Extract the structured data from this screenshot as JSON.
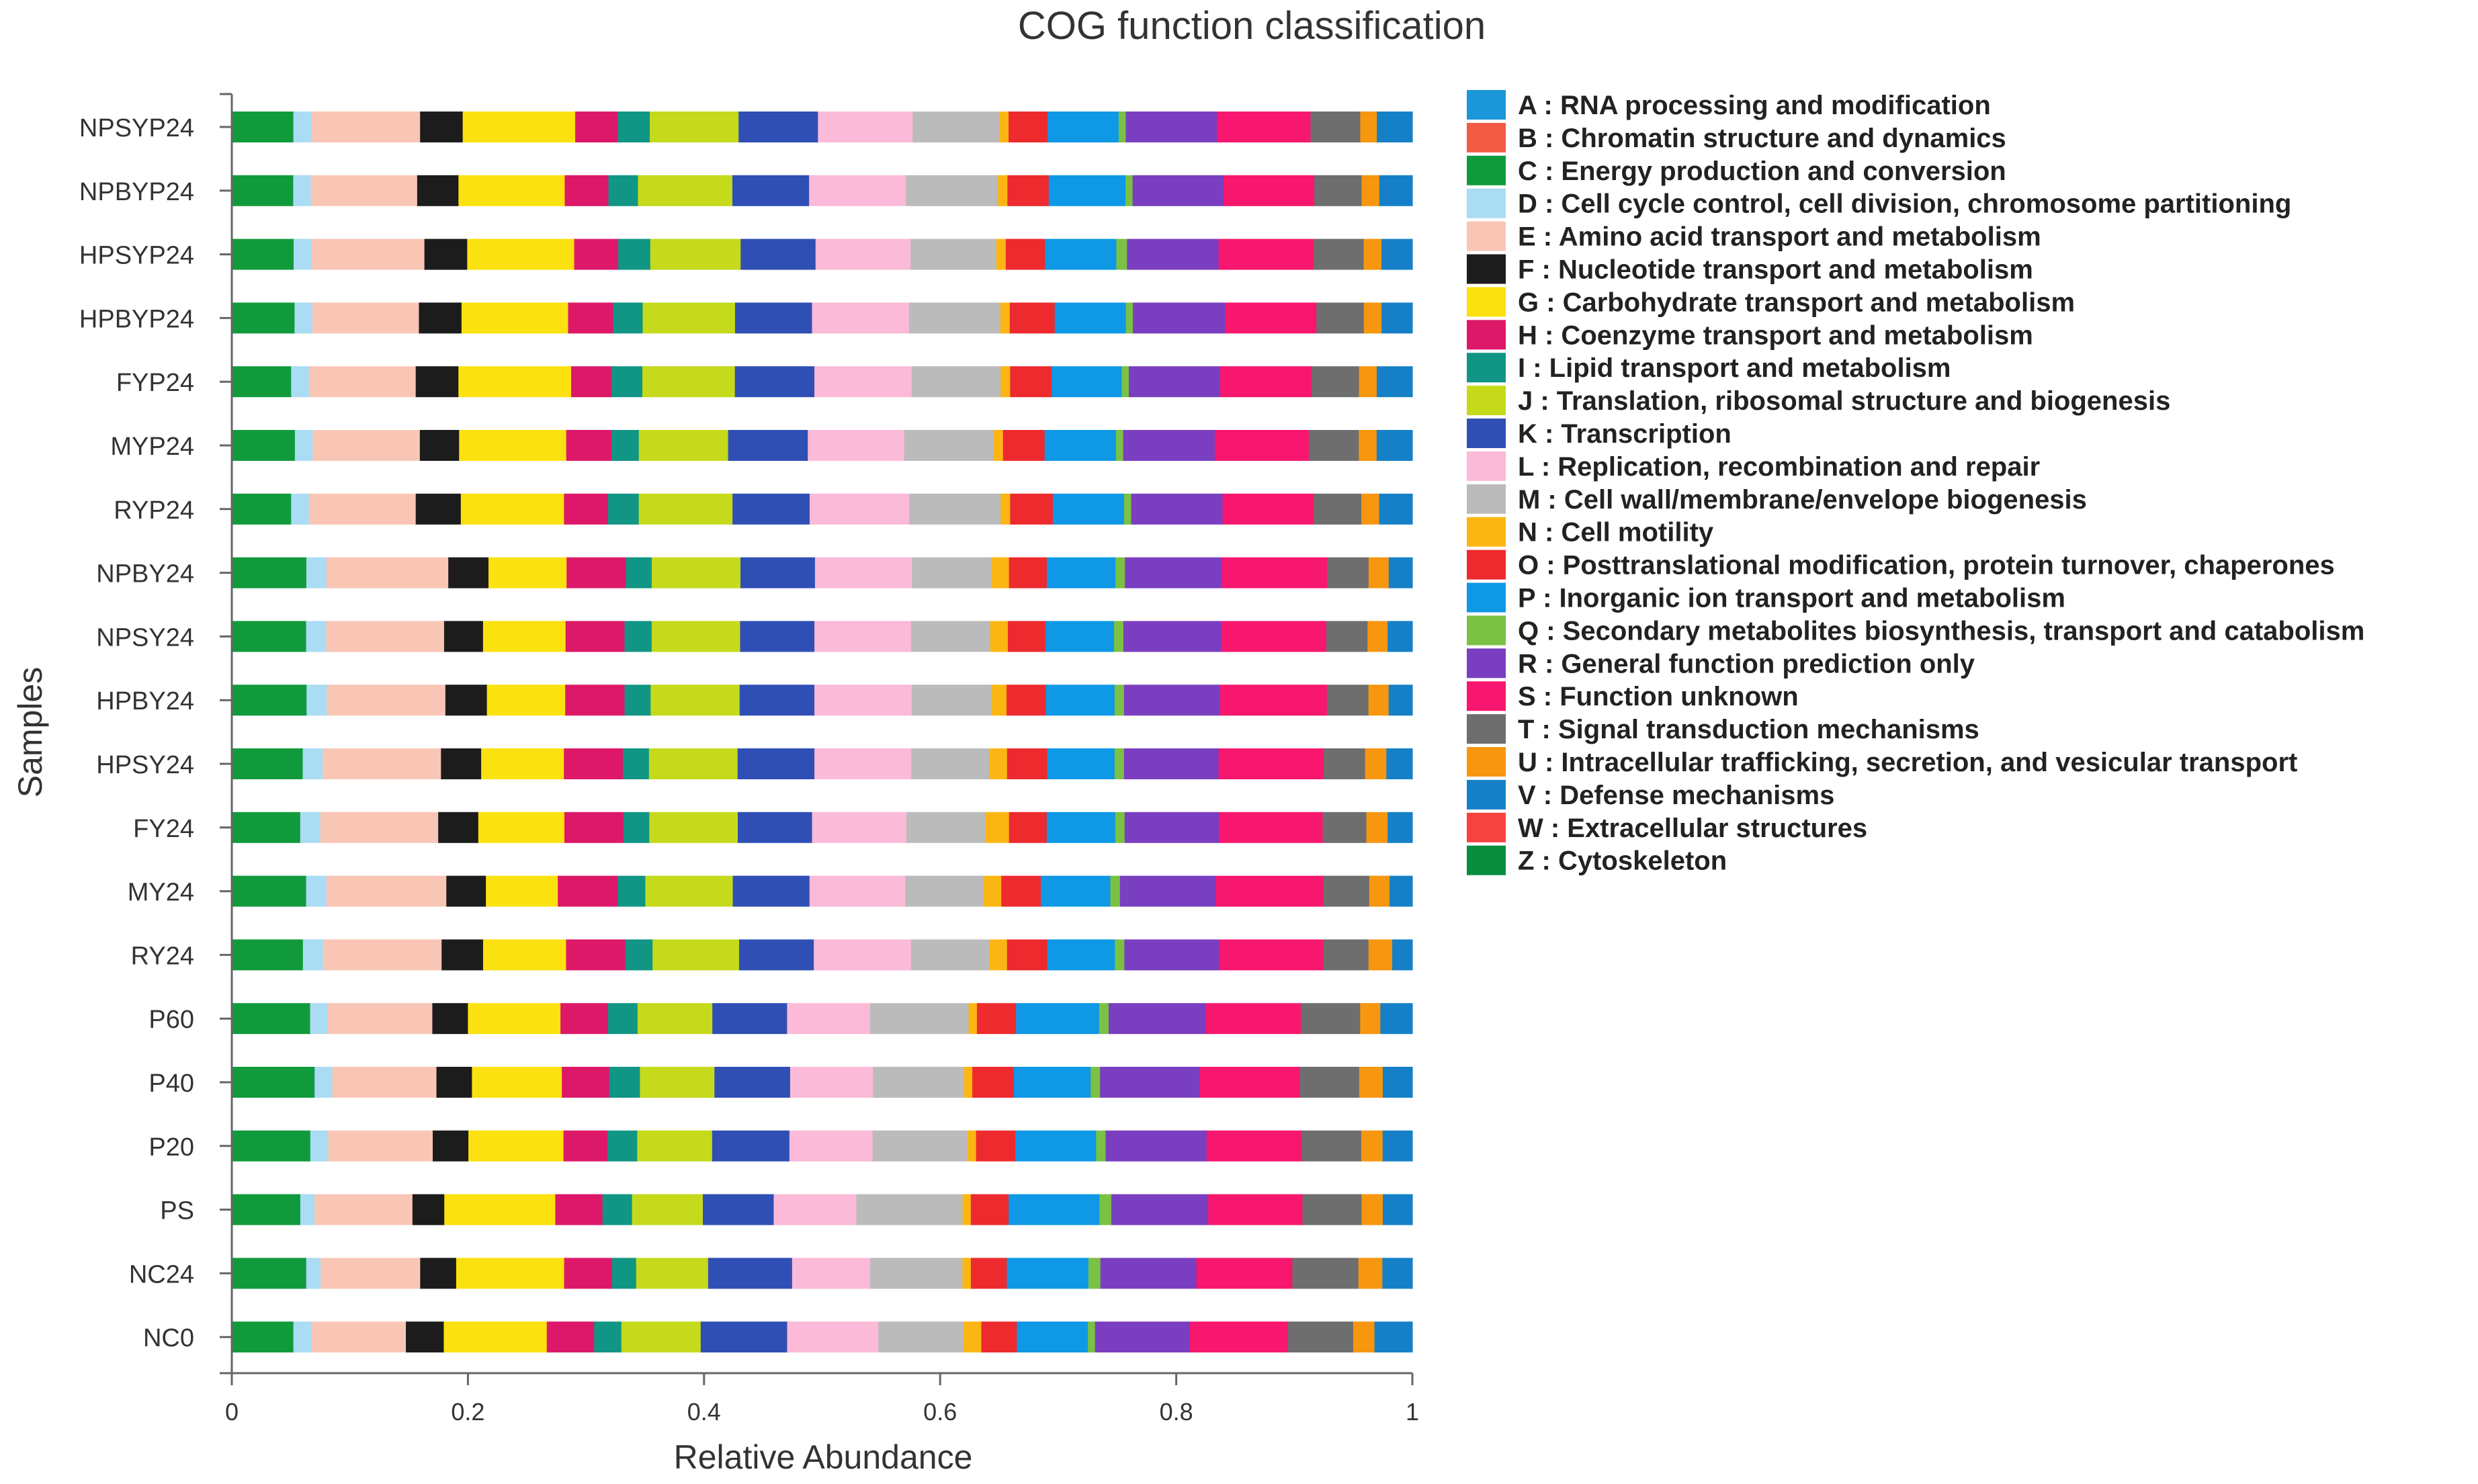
{
  "chart_data": {
    "type": "bar",
    "orientation": "horizontal",
    "stacked": true,
    "title": "COG function classification",
    "xlabel": "Relative Abundance",
    "ylabel": "Samples",
    "xlim": [
      0,
      1
    ],
    "xticks": [
      "0",
      "0.2",
      "0.4",
      "0.6",
      "0.8",
      "1"
    ],
    "grid": false,
    "legend_position": "right",
    "categories": [
      "NPSYP24",
      "NPBYP24",
      "HPSYP24",
      "HPBYP24",
      "FYP24",
      "MYP24",
      "RYP24",
      "NPBY24",
      "NPSY24",
      "HPBY24",
      "HPSY24",
      "FY24",
      "MY24",
      "RY24",
      "P60",
      "P40",
      "P20",
      "PS",
      "NC24",
      "NC0"
    ],
    "series": [
      {
        "name": "A : RNA processing and modification",
        "color": "#1b96d9",
        "values": [
          0,
          0,
          0,
          0,
          0,
          0,
          0,
          0,
          0,
          0,
          0,
          0,
          0,
          0,
          0,
          0,
          0,
          0,
          0,
          0
        ]
      },
      {
        "name": "B : Chromatin structure and dynamics",
        "color": "#f25c45",
        "values": [
          0,
          0,
          0,
          0,
          0,
          0,
          0,
          0,
          0,
          0,
          0,
          0,
          0,
          0,
          0,
          0,
          0,
          0,
          0,
          0
        ]
      },
      {
        "name": "C : Energy production and conversion",
        "color": "#119a3c",
        "values": [
          0.052,
          0.052,
          0.052,
          0.053,
          0.05,
          0.053,
          0.05,
          0.063,
          0.063,
          0.063,
          0.06,
          0.058,
          0.062,
          0.06,
          0.066,
          0.07,
          0.066,
          0.058,
          0.062,
          0.052
        ]
      },
      {
        "name": "D : Cell cycle control, cell division, chromosome partitioning",
        "color": "#aadcf4",
        "values": [
          0.015,
          0.015,
          0.015,
          0.015,
          0.015,
          0.015,
          0.015,
          0.017,
          0.017,
          0.017,
          0.017,
          0.017,
          0.017,
          0.017,
          0.015,
          0.015,
          0.015,
          0.012,
          0.012,
          0.015
        ]
      },
      {
        "name": "E : Amino acid transport and metabolism",
        "color": "#f9c6b5",
        "values": [
          0.092,
          0.09,
          0.095,
          0.09,
          0.09,
          0.09,
          0.09,
          0.103,
          0.1,
          0.1,
          0.1,
          0.1,
          0.1,
          0.1,
          0.088,
          0.088,
          0.088,
          0.083,
          0.083,
          0.08
        ]
      },
      {
        "name": "F : Nucleotide transport and metabolism",
        "color": "#1c1c1c",
        "values": [
          0.036,
          0.035,
          0.036,
          0.036,
          0.036,
          0.033,
          0.038,
          0.034,
          0.033,
          0.035,
          0.034,
          0.034,
          0.033,
          0.035,
          0.03,
          0.03,
          0.03,
          0.027,
          0.03,
          0.032
        ]
      },
      {
        "name": "G : Carbohydrate transport and metabolism",
        "color": "#fbe10f",
        "values": [
          0.095,
          0.09,
          0.09,
          0.09,
          0.095,
          0.09,
          0.087,
          0.066,
          0.07,
          0.066,
          0.07,
          0.073,
          0.06,
          0.07,
          0.078,
          0.076,
          0.08,
          0.094,
          0.09,
          0.087
        ]
      },
      {
        "name": "H : Coenzyme transport and metabolism",
        "color": "#dd1869",
        "values": [
          0.036,
          0.037,
          0.037,
          0.038,
          0.034,
          0.038,
          0.037,
          0.05,
          0.05,
          0.05,
          0.05,
          0.05,
          0.05,
          0.05,
          0.04,
          0.04,
          0.037,
          0.04,
          0.04,
          0.04
        ]
      },
      {
        "name": "I : Lipid transport and metabolism",
        "color": "#119585",
        "values": [
          0.027,
          0.025,
          0.027,
          0.025,
          0.026,
          0.023,
          0.026,
          0.022,
          0.023,
          0.022,
          0.022,
          0.022,
          0.023,
          0.023,
          0.025,
          0.026,
          0.025,
          0.025,
          0.02,
          0.023
        ]
      },
      {
        "name": "J : Translation, ribosomal structure and biogenesis",
        "color": "#c4da1b",
        "values": [
          0.075,
          0.08,
          0.076,
          0.078,
          0.078,
          0.075,
          0.079,
          0.075,
          0.075,
          0.075,
          0.075,
          0.075,
          0.073,
          0.073,
          0.063,
          0.063,
          0.063,
          0.06,
          0.06,
          0.067
        ]
      },
      {
        "name": "K : Transcription",
        "color": "#2f4fb5",
        "values": [
          0.067,
          0.065,
          0.063,
          0.065,
          0.067,
          0.067,
          0.065,
          0.063,
          0.063,
          0.063,
          0.065,
          0.063,
          0.064,
          0.063,
          0.063,
          0.064,
          0.065,
          0.06,
          0.07,
          0.073
        ]
      },
      {
        "name": "L : Replication, recombination and repair",
        "color": "#fbbad7",
        "values": [
          0.08,
          0.082,
          0.08,
          0.082,
          0.082,
          0.081,
          0.084,
          0.082,
          0.082,
          0.082,
          0.082,
          0.08,
          0.08,
          0.082,
          0.07,
          0.07,
          0.07,
          0.07,
          0.065,
          0.077
        ]
      },
      {
        "name": "M : Cell wall/membrane/envelope biogenesis",
        "color": "#bbbbbb",
        "values": [
          0.073,
          0.078,
          0.072,
          0.077,
          0.075,
          0.075,
          0.077,
          0.067,
          0.067,
          0.067,
          0.066,
          0.067,
          0.065,
          0.066,
          0.083,
          0.077,
          0.08,
          0.09,
          0.077,
          0.072
        ]
      },
      {
        "name": "N : Cell motility",
        "color": "#fcb614",
        "values": [
          0.008,
          0.008,
          0.008,
          0.008,
          0.008,
          0.008,
          0.008,
          0.015,
          0.015,
          0.013,
          0.015,
          0.02,
          0.015,
          0.015,
          0.007,
          0.007,
          0.007,
          0.007,
          0.007,
          0.015
        ]
      },
      {
        "name": "O : Posttranslational modification, protein turnover, chaperones",
        "color": "#ed2a2e",
        "values": [
          0.033,
          0.035,
          0.033,
          0.038,
          0.035,
          0.035,
          0.036,
          0.032,
          0.032,
          0.033,
          0.034,
          0.032,
          0.033,
          0.034,
          0.033,
          0.035,
          0.033,
          0.032,
          0.03,
          0.03
        ]
      },
      {
        "name": "P : Inorganic ion transport and metabolism",
        "color": "#0e98e6",
        "values": [
          0.06,
          0.065,
          0.06,
          0.06,
          0.059,
          0.06,
          0.06,
          0.058,
          0.058,
          0.058,
          0.057,
          0.058,
          0.058,
          0.057,
          0.07,
          0.065,
          0.068,
          0.077,
          0.068,
          0.06
        ]
      },
      {
        "name": "Q : Secondary metabolites biosynthesis, transport and catabolism",
        "color": "#7ac144",
        "values": [
          0.006,
          0.006,
          0.009,
          0.006,
          0.006,
          0.006,
          0.006,
          0.008,
          0.008,
          0.008,
          0.008,
          0.008,
          0.008,
          0.008,
          0.008,
          0.008,
          0.008,
          0.01,
          0.01,
          0.006
        ]
      },
      {
        "name": "R : General function prediction only",
        "color": "#7a3ec0",
        "values": [
          0.077,
          0.077,
          0.077,
          0.078,
          0.077,
          0.077,
          0.077,
          0.082,
          0.083,
          0.081,
          0.08,
          0.08,
          0.08,
          0.08,
          0.082,
          0.084,
          0.085,
          0.082,
          0.08,
          0.08
        ]
      },
      {
        "name": "S : Function unknown",
        "color": "#f7176e",
        "values": [
          0.079,
          0.077,
          0.08,
          0.077,
          0.077,
          0.079,
          0.077,
          0.089,
          0.089,
          0.09,
          0.089,
          0.088,
          0.09,
          0.088,
          0.08,
          0.085,
          0.08,
          0.08,
          0.08,
          0.083
        ]
      },
      {
        "name": "T : Signal transduction mechanisms",
        "color": "#6e6e6e",
        "values": [
          0.042,
          0.04,
          0.042,
          0.04,
          0.04,
          0.042,
          0.04,
          0.035,
          0.035,
          0.035,
          0.035,
          0.037,
          0.038,
          0.038,
          0.05,
          0.05,
          0.05,
          0.05,
          0.055,
          0.055
        ]
      },
      {
        "name": "U : Intracellular trafficking, secretion, and vesicular transport",
        "color": "#f7960f",
        "values": [
          0.014,
          0.015,
          0.015,
          0.015,
          0.015,
          0.015,
          0.015,
          0.017,
          0.017,
          0.017,
          0.018,
          0.018,
          0.017,
          0.02,
          0.017,
          0.02,
          0.018,
          0.018,
          0.02,
          0.018
        ]
      },
      {
        "name": "V : Defense mechanisms",
        "color": "#1580c7",
        "values": [
          0.03,
          0.028,
          0.026,
          0.026,
          0.03,
          0.03,
          0.028,
          0.02,
          0.021,
          0.02,
          0.022,
          0.021,
          0.019,
          0.017,
          0.027,
          0.025,
          0.025,
          0.025,
          0.025,
          0.032
        ]
      },
      {
        "name": "W : Extracellular structures",
        "color": "#f6433f",
        "values": [
          0,
          0,
          0,
          0,
          0,
          0,
          0,
          0,
          0,
          0,
          0,
          0,
          0,
          0,
          0,
          0,
          0,
          0,
          0,
          0
        ]
      },
      {
        "name": "Z : Cytoskeleton",
        "color": "#0b8d3f",
        "values": [
          0,
          0,
          0,
          0,
          0,
          0,
          0,
          0,
          0,
          0,
          0,
          0,
          0,
          0,
          0,
          0,
          0,
          0,
          0,
          0
        ]
      }
    ]
  }
}
